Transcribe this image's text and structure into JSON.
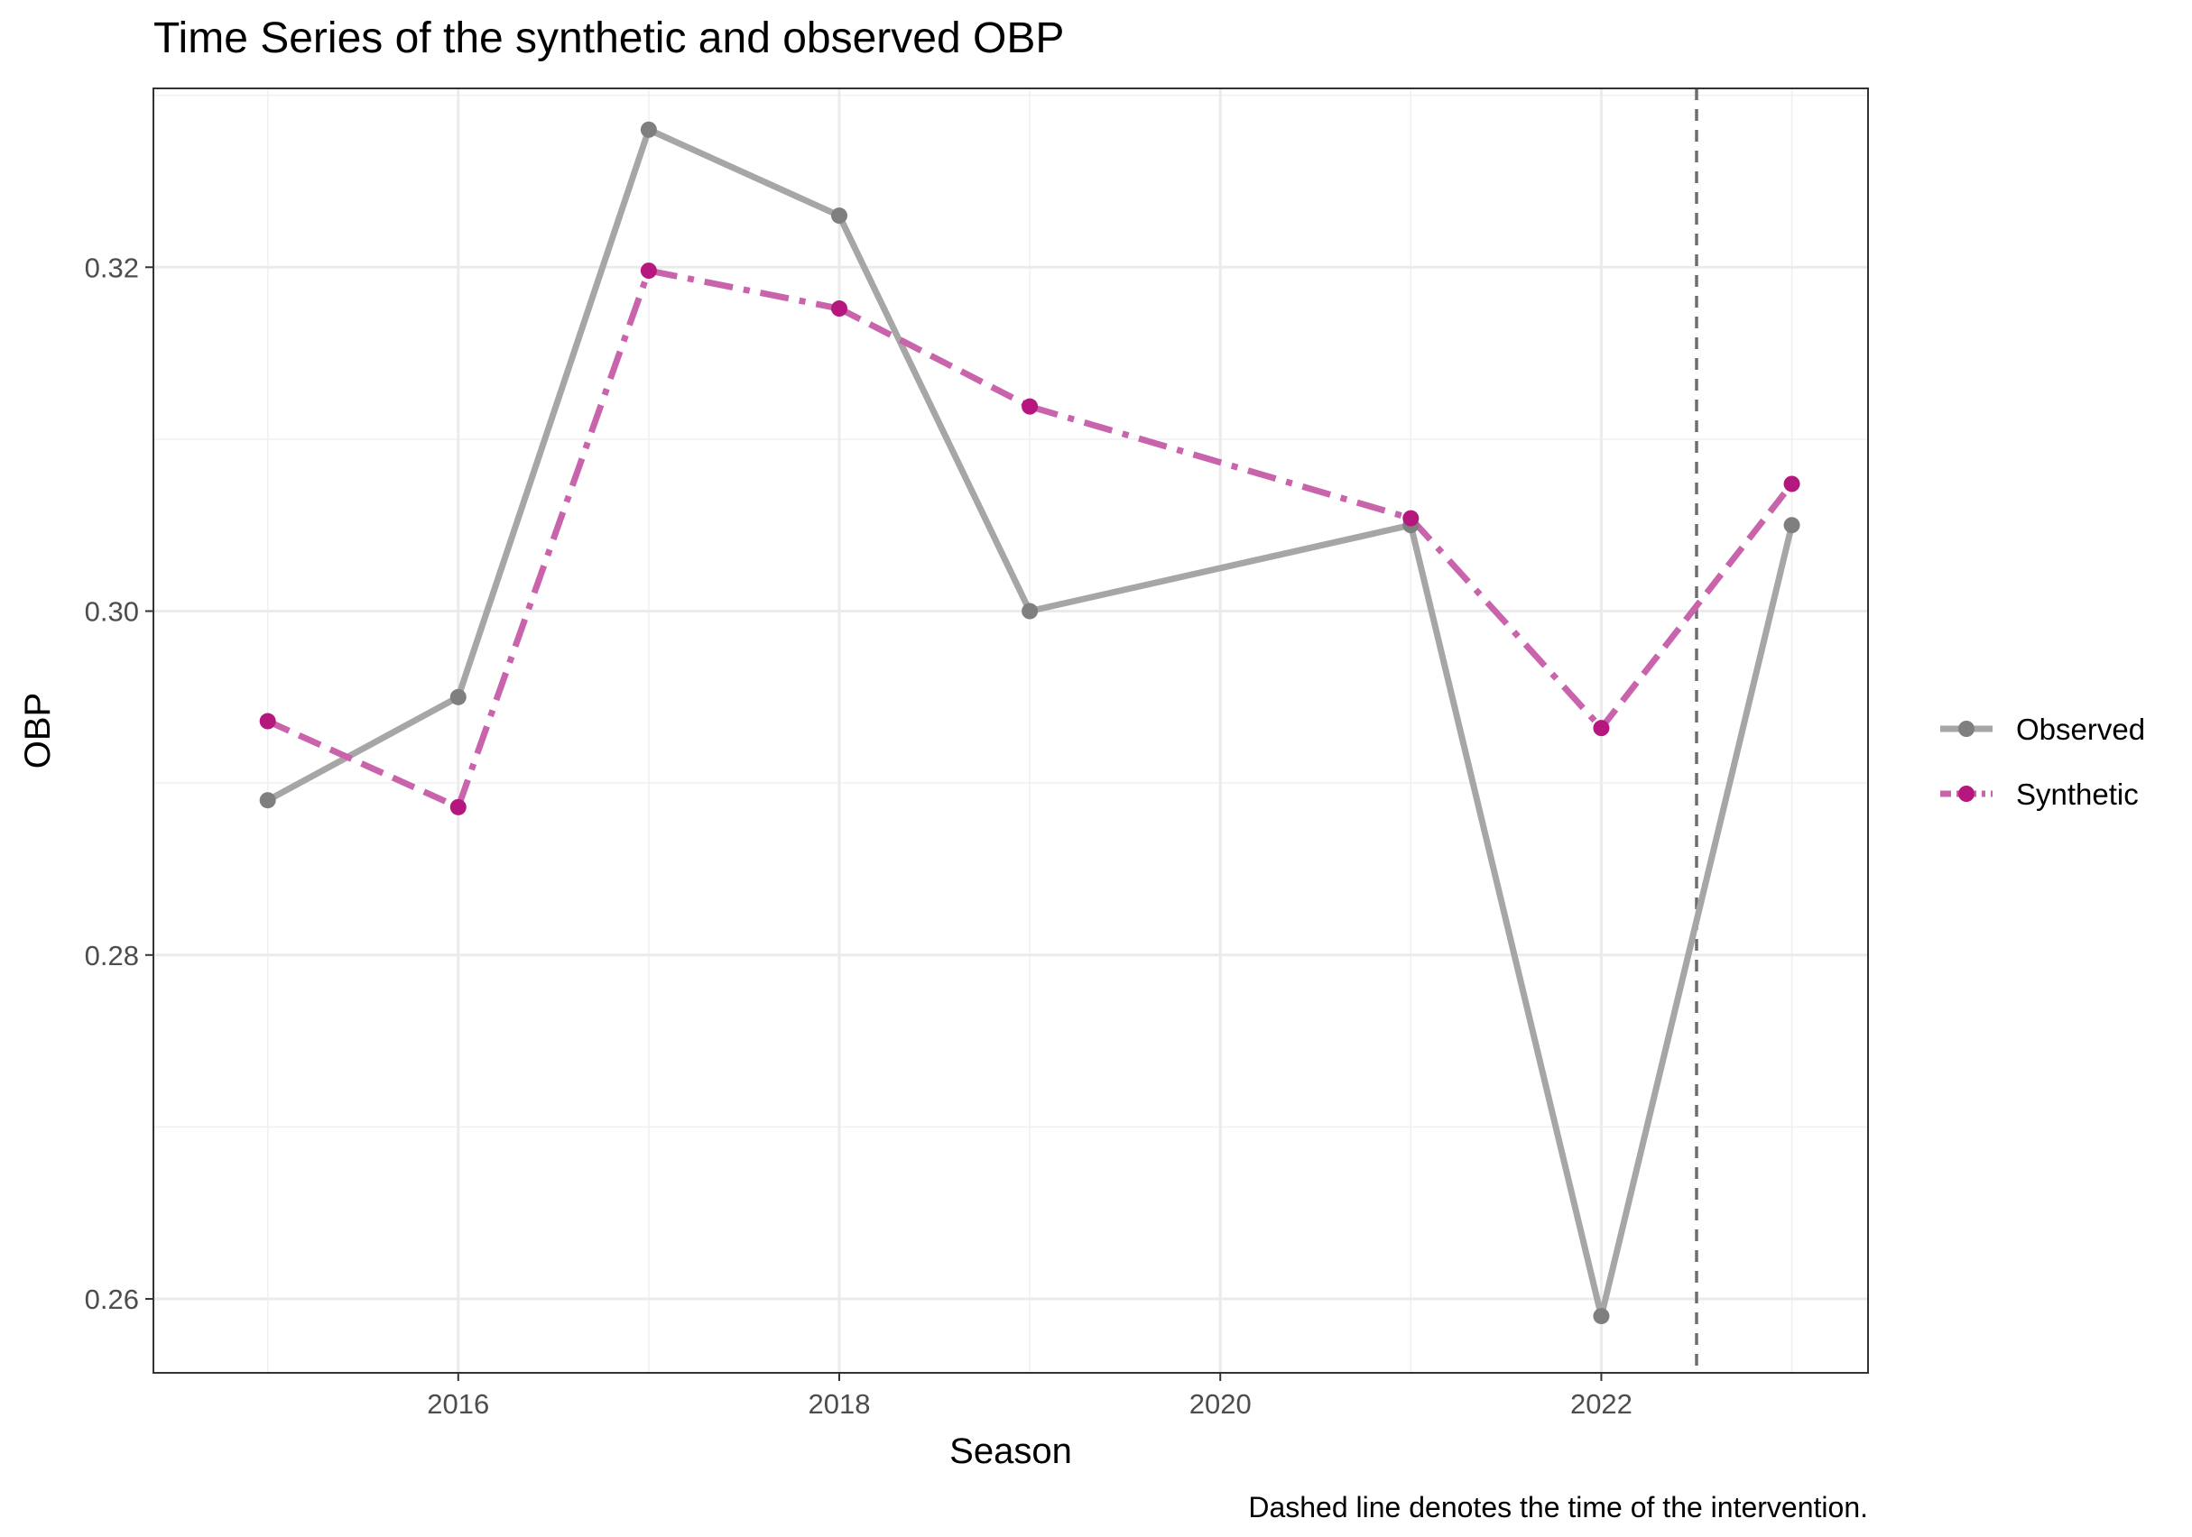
{
  "chart_data": {
    "type": "line",
    "title": "Time Series of the synthetic and observed OBP",
    "xlabel": "Season",
    "ylabel": "OBP",
    "caption": "Dashed line denotes the time of the intervention.",
    "x": [
      2015,
      2016,
      2017,
      2018,
      2019,
      2021,
      2022,
      2023
    ],
    "xlim": [
      2014.4,
      2023.4
    ],
    "ylim": [
      0.2557,
      0.3304
    ],
    "x_ticks": [
      2016,
      2018,
      2020,
      2022
    ],
    "x_tick_labels": [
      "2016",
      "2018",
      "2020",
      "2022"
    ],
    "y_ticks": [
      0.26,
      0.28,
      0.3,
      0.32
    ],
    "y_tick_labels": [
      "0.26",
      "0.28",
      "0.30",
      "0.32"
    ],
    "grid": true,
    "legend_position": "right",
    "intervention_x": 2022.5,
    "series": [
      {
        "name": "Observed",
        "color": "#a6a6a6",
        "point_color": "#7f7f7f",
        "line_style": "solid",
        "values": [
          0.289,
          0.295,
          0.328,
          0.323,
          0.3,
          0.305,
          0.259,
          0.305
        ]
      },
      {
        "name": "Synthetic",
        "color": "#c964ac",
        "point_color": "#b5177f",
        "line_style": "dashed/dotdash",
        "values": [
          0.2936,
          0.2886,
          0.3198,
          0.3176,
          0.3119,
          0.3054,
          0.2932,
          0.3074
        ]
      }
    ]
  }
}
